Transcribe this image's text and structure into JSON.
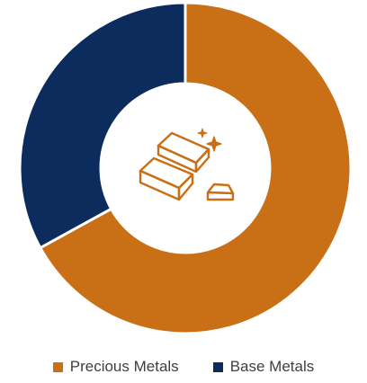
{
  "chart_data": {
    "type": "pie",
    "variant": "donut",
    "categories": [
      "Precious Metals",
      "Base Metals"
    ],
    "values": [
      67,
      33
    ],
    "colors": [
      "#C96F16",
      "#0B2C5C"
    ],
    "legend_position": "bottom",
    "center_icon": "gold-bars-icon"
  },
  "colors": {
    "icon": "#C96F16",
    "slice_border": "#ffffff",
    "legend_text": "#3f3f3f"
  }
}
